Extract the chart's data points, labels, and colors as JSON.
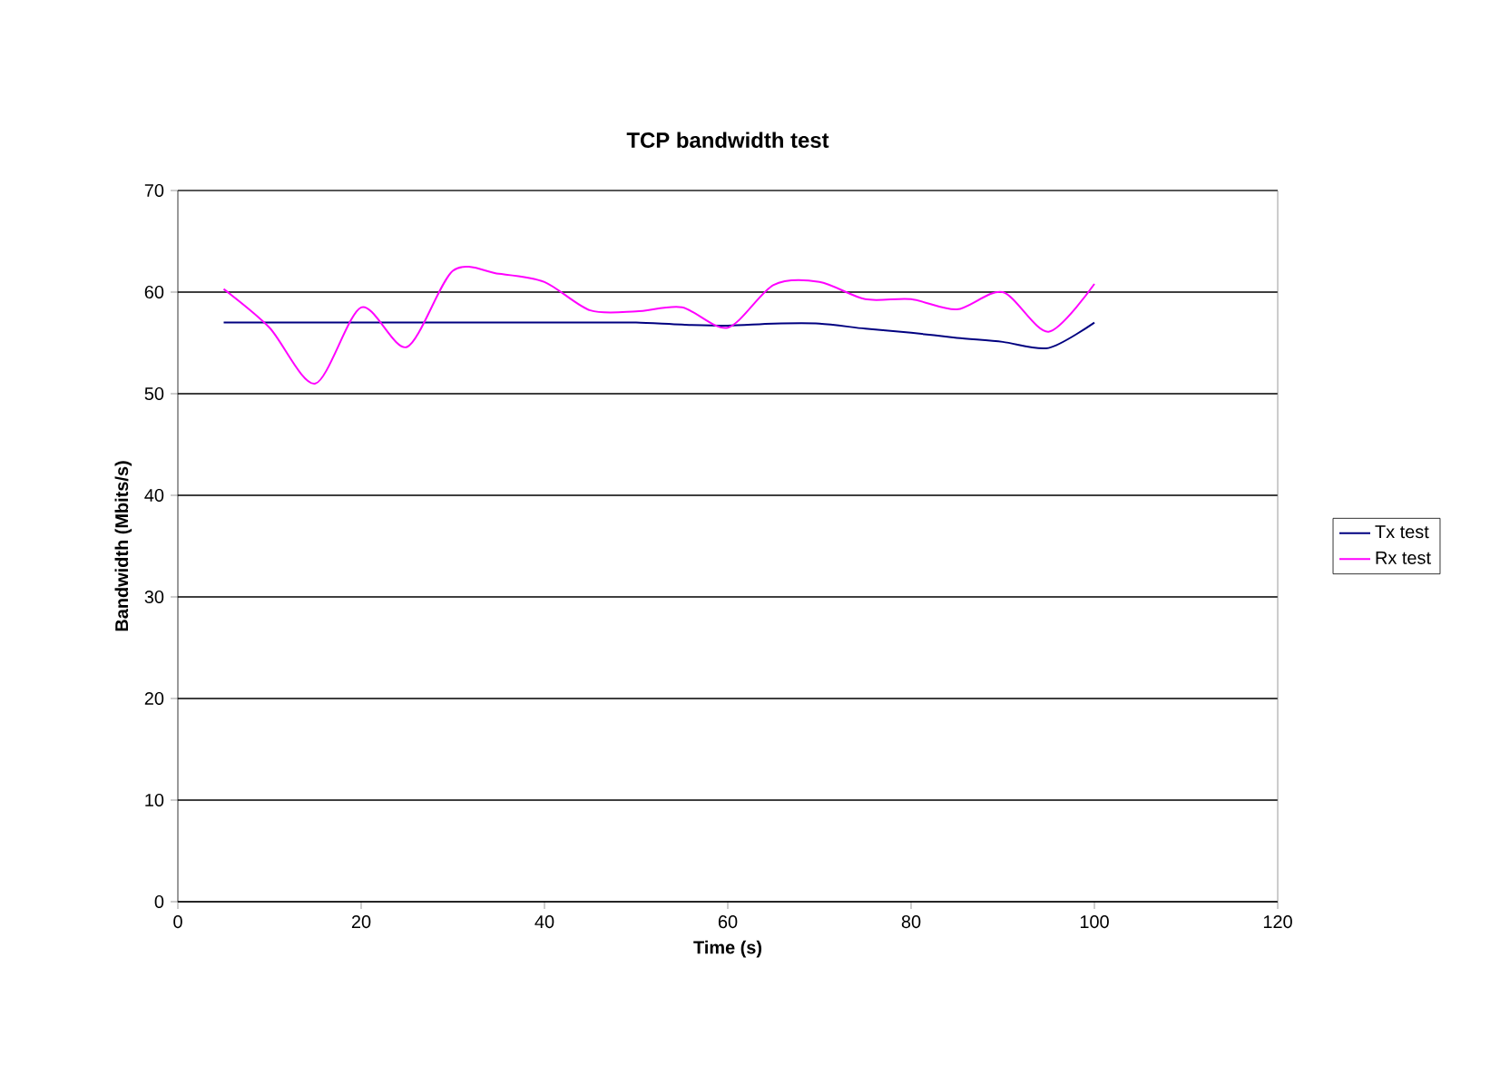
{
  "chart_data": {
    "type": "line",
    "title": "TCP bandwidth test",
    "xlabel": "Time (s)",
    "ylabel": "Bandwidth (Mbits/s)",
    "x": [
      5,
      10,
      15,
      20,
      25,
      30,
      35,
      40,
      45,
      50,
      55,
      60,
      65,
      70,
      75,
      80,
      85,
      90,
      95,
      100
    ],
    "series": [
      {
        "name": "Tx test",
        "color": "#000080",
        "values": [
          57,
          57,
          57,
          57,
          57,
          57,
          57,
          57,
          57,
          57,
          56.8,
          56.7,
          56.9,
          56.9,
          56.4,
          56,
          55.5,
          55.1,
          54.5,
          57
        ]
      },
      {
        "name": "Rx test",
        "color": "#ff00ff",
        "values": [
          60.3,
          56.5,
          51,
          58.5,
          54.6,
          62.1,
          61.8,
          61,
          58.2,
          58.1,
          58.5,
          56.5,
          60.7,
          61,
          59.3,
          59.3,
          58.3,
          60,
          56.1,
          60.8
        ]
      }
    ],
    "xlim": [
      0,
      120
    ],
    "xticks": [
      0,
      20,
      40,
      60,
      80,
      100,
      120
    ],
    "ylim": [
      0,
      70
    ],
    "yticks": [
      0,
      10,
      20,
      30,
      40,
      50,
      60,
      70
    ],
    "grid": "y",
    "legend": "right"
  }
}
